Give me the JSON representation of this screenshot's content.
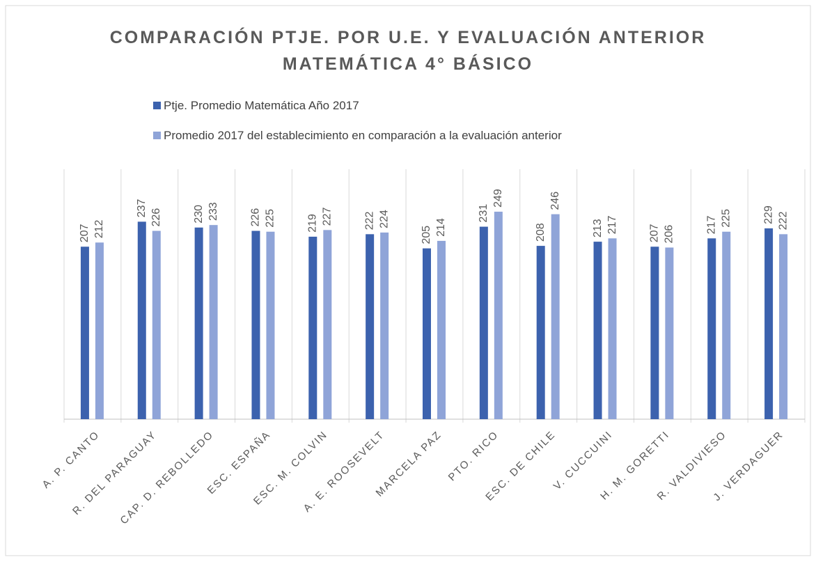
{
  "chart_data": {
    "type": "bar",
    "title": [
      "COMPARACIÓN PTJE. POR U.E. Y EVALUACIÓN ANTERIOR",
      "MATEMÁTICA 4° BÁSICO"
    ],
    "categories": [
      "A. P. CANTO",
      "R. DEL PARAGUAY",
      "CAP. D. REBOLLEDO",
      "ESC. ESPAÑA",
      "ESC. M. COLVIN",
      "A. E. ROOSEVELT",
      "MARCELA PAZ",
      "PTO. RICO",
      "ESC. DE CHILE",
      "V. CUCCUINI",
      "H. M. GORETTI",
      "R. VALDIVIESO",
      "J. VERDAGUER"
    ],
    "series": [
      {
        "name": "Ptje. Promedio Matemática Año 2017",
        "color": "#3c62ae",
        "values": [
          207,
          237,
          230,
          226,
          219,
          222,
          205,
          231,
          208,
          213,
          207,
          217,
          229
        ]
      },
      {
        "name": "Promedio 2017 del establecimiento en comparación a la evaluación anterior",
        "color": "#8fa4d8",
        "values": [
          212,
          226,
          233,
          225,
          227,
          224,
          214,
          249,
          246,
          217,
          206,
          225,
          222
        ]
      }
    ],
    "ylim": [
      0,
      300
    ],
    "legend": "top"
  }
}
